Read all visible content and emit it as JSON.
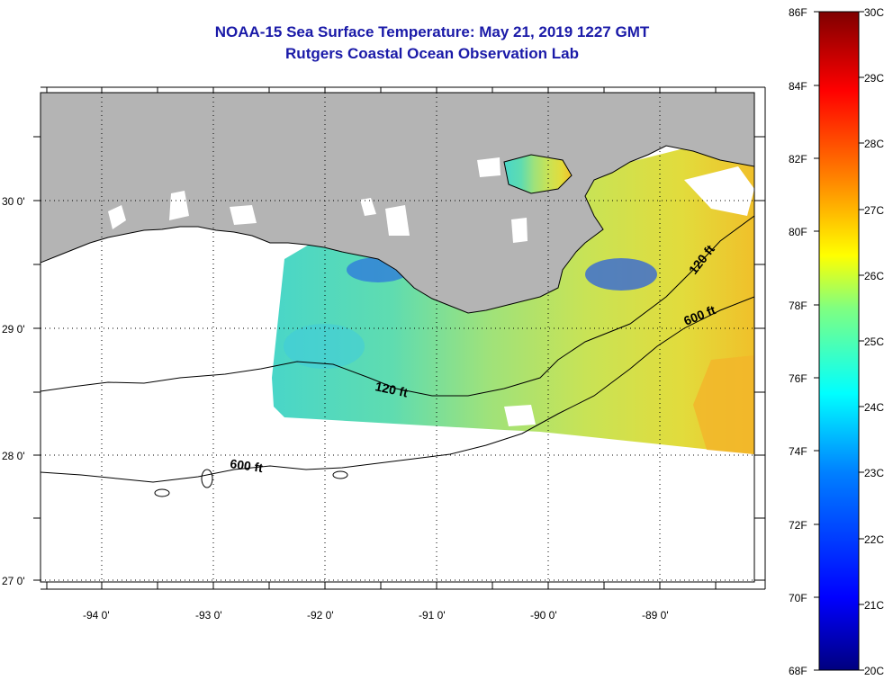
{
  "title_line1": "NOAA-15 Sea Surface Temperature:  May 21, 2019 1227 GMT",
  "title_line2": "Rutgers Coastal Ocean Observation Lab",
  "colors": {
    "land": "#b4b4b4",
    "title": "#1a1aa8",
    "colorbar_stops": [
      "#00007f",
      "#0000ff",
      "#0080ff",
      "#00ffff",
      "#80ff80",
      "#ffff00",
      "#ff8000",
      "#ff0000",
      "#7f0000"
    ]
  },
  "axes": {
    "lon_labels": [
      "-94 0'",
      "-93 0'",
      "-92 0'",
      "-91 0'",
      "-90 0'",
      "-89 0'"
    ],
    "lat_labels": [
      "30 0'",
      "29 0'",
      "28 0'",
      "27 0'"
    ]
  },
  "colorbar": {
    "fahrenheit": [
      "86F",
      "84F",
      "82F",
      "80F",
      "78F",
      "76F",
      "74F",
      "72F",
      "70F",
      "68F"
    ],
    "celsius": [
      "30C",
      "29C",
      "28C",
      "27C",
      "26C",
      "25C",
      "24C",
      "23C",
      "22C",
      "21C",
      "20C"
    ]
  },
  "contours": {
    "c120_a": "120 ft",
    "c120_b": "120 ft",
    "c600_a": "600 ft",
    "c600_b": "600 ft"
  }
}
